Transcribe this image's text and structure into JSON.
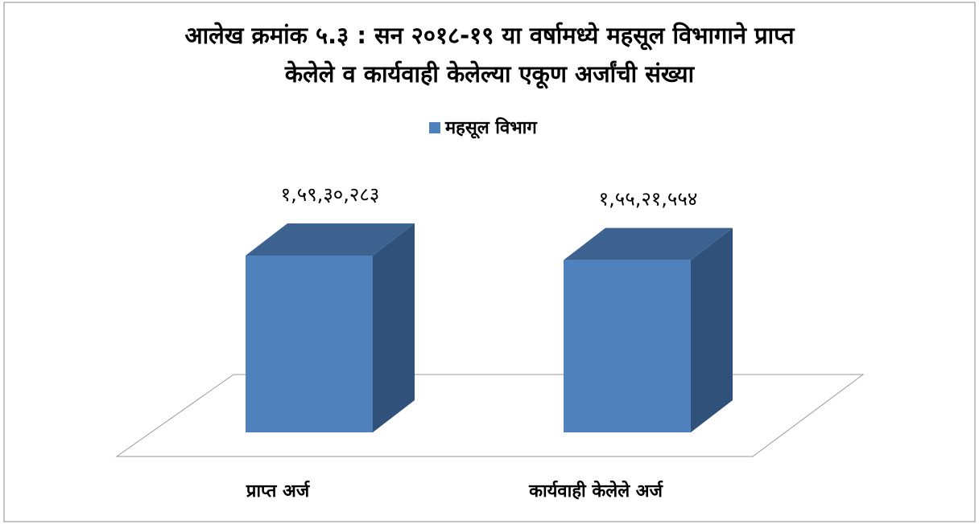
{
  "chart_data": {
    "type": "bar3d",
    "title": [
      "आलेख क्रमांक ५.३ : सन २०१८-१९ या वर्षामध्ये महसूल विभागाने प्राप्त",
      "केलेले व कार्यवाही केलेल्या एकूण अर्जांची संख्या"
    ],
    "series": [
      {
        "name": "महसूल विभाग",
        "color": "#4f81bd",
        "values": [
          15930283,
          15521554
        ],
        "value_labels": [
          "१,५९,३०,२८३",
          "१,५५,२१,५५४"
        ]
      }
    ],
    "categories": [
      "प्राप्त अर्ज",
      "कार्यवाही केलेले अर्ज"
    ]
  }
}
